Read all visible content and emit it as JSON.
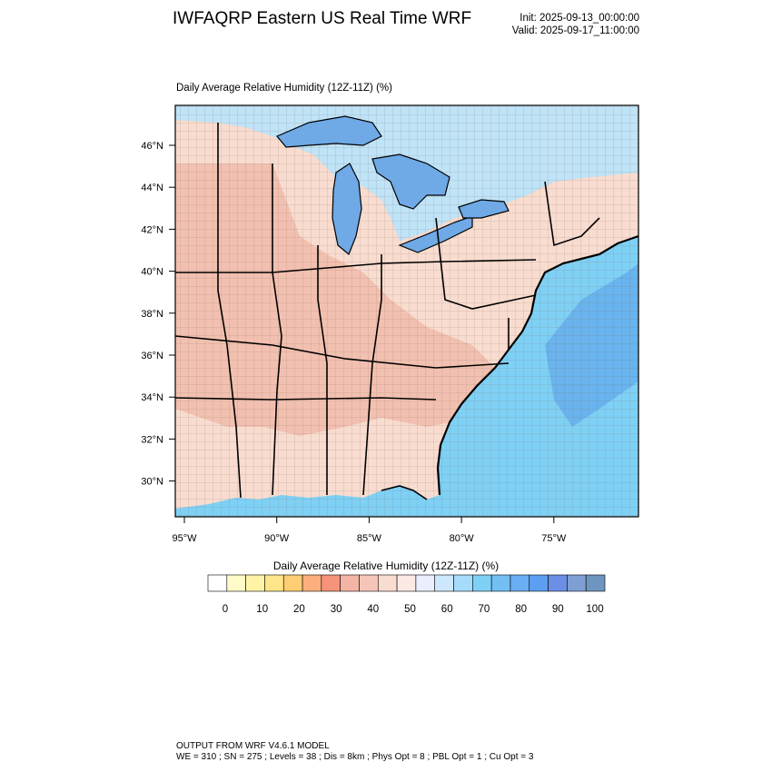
{
  "header": {
    "title": "IWFAQRP Eastern US Real Time WRF",
    "init": "Init: 2025-09-13_00:00:00",
    "valid": "Valid: 2025-09-17_11:00:00"
  },
  "plot_title": "Daily Average Relative Humidity (12Z-11Z)   (%)",
  "map": {
    "lat_labels": [
      "46°N",
      "44°N",
      "42°N",
      "40°N",
      "38°N",
      "36°N",
      "34°N",
      "32°N",
      "30°N"
    ],
    "lon_labels": [
      "95°W",
      "90°W",
      "85°W",
      "80°W",
      "75°W"
    ],
    "colors": {
      "land_dry": "#f2c0b0",
      "land_mid": "#f7dccf",
      "ocean": "#7fd0f5",
      "ocean_deep": "#69b4ee",
      "lakes": "#6fa9e6",
      "canada": "#bfe3f7",
      "border": "#000000"
    }
  },
  "colorbar": {
    "title": "Daily Average Relative Humidity (12Z-11Z)  (%)",
    "labels": [
      "0",
      "10",
      "20",
      "30",
      "40",
      "50",
      "60",
      "70",
      "80",
      "90",
      "100"
    ],
    "colors": [
      "#ffffff",
      "#fffbc8",
      "#fff4a6",
      "#ffe58a",
      "#ffcd73",
      "#fbaf7c",
      "#f7937a",
      "#f3b4a6",
      "#f5c6b8",
      "#f9dcd0",
      "#fbe9e4",
      "#eaeeff",
      "#cde7fc",
      "#a6dcfb",
      "#7fd0f5",
      "#73bff4",
      "#6aaef3",
      "#5c9ef2",
      "#6c8fe6",
      "#7f9fd4",
      "#6e95c0"
    ]
  },
  "footer": {
    "line1": "OUTPUT FROM WRF V4.6.1 MODEL",
    "line2": "WE = 310 ; SN = 275 ; Levels = 38 ; Dis = 8km ; Phys Opt = 8 ; PBL Opt = 1 ; Cu Opt = 3"
  }
}
